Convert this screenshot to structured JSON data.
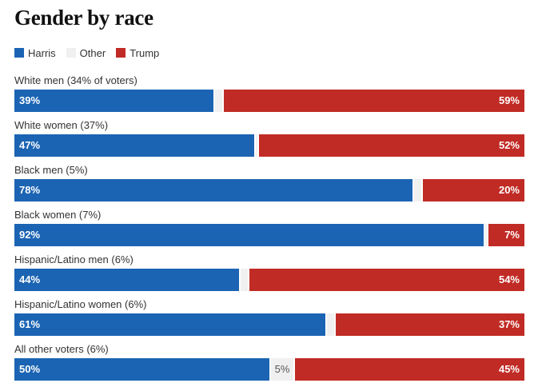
{
  "title": "Gender by race",
  "legend": [
    {
      "label": "Harris",
      "color": "#1b64b3"
    },
    {
      "label": "Other",
      "color": "#f0f0f0"
    },
    {
      "label": "Trump",
      "color": "#c12b25"
    }
  ],
  "chart_data": {
    "type": "bar",
    "orientation": "horizontal",
    "stacked": true,
    "title": "Gender by race",
    "series_names": [
      "Harris",
      "Other",
      "Trump"
    ],
    "categories": [
      "White men (34% of voters)",
      "White women (37%)",
      "Black men (5%)",
      "Black women (7%)",
      "Hispanic/Latino men (6%)",
      "Hispanic/Latino women (6%)",
      "All other voters (6%)"
    ],
    "series": [
      {
        "name": "Harris",
        "values": [
          39,
          47,
          78,
          92,
          44,
          61,
          50
        ]
      },
      {
        "name": "Other",
        "values": [
          2,
          1,
          2,
          1,
          2,
          2,
          5
        ]
      },
      {
        "name": "Trump",
        "values": [
          59,
          52,
          20,
          7,
          54,
          37,
          45
        ]
      }
    ],
    "labels": {
      "Harris": [
        "39%",
        "47%",
        "78%",
        "92%",
        "44%",
        "61%",
        "50%"
      ],
      "Other": [
        "",
        "",
        "",
        "",
        "",
        "",
        "5%"
      ],
      "Trump": [
        "59%",
        "52%",
        "20%",
        "7%",
        "54%",
        "37%",
        "45%"
      ]
    },
    "xlim": [
      0,
      100
    ]
  }
}
